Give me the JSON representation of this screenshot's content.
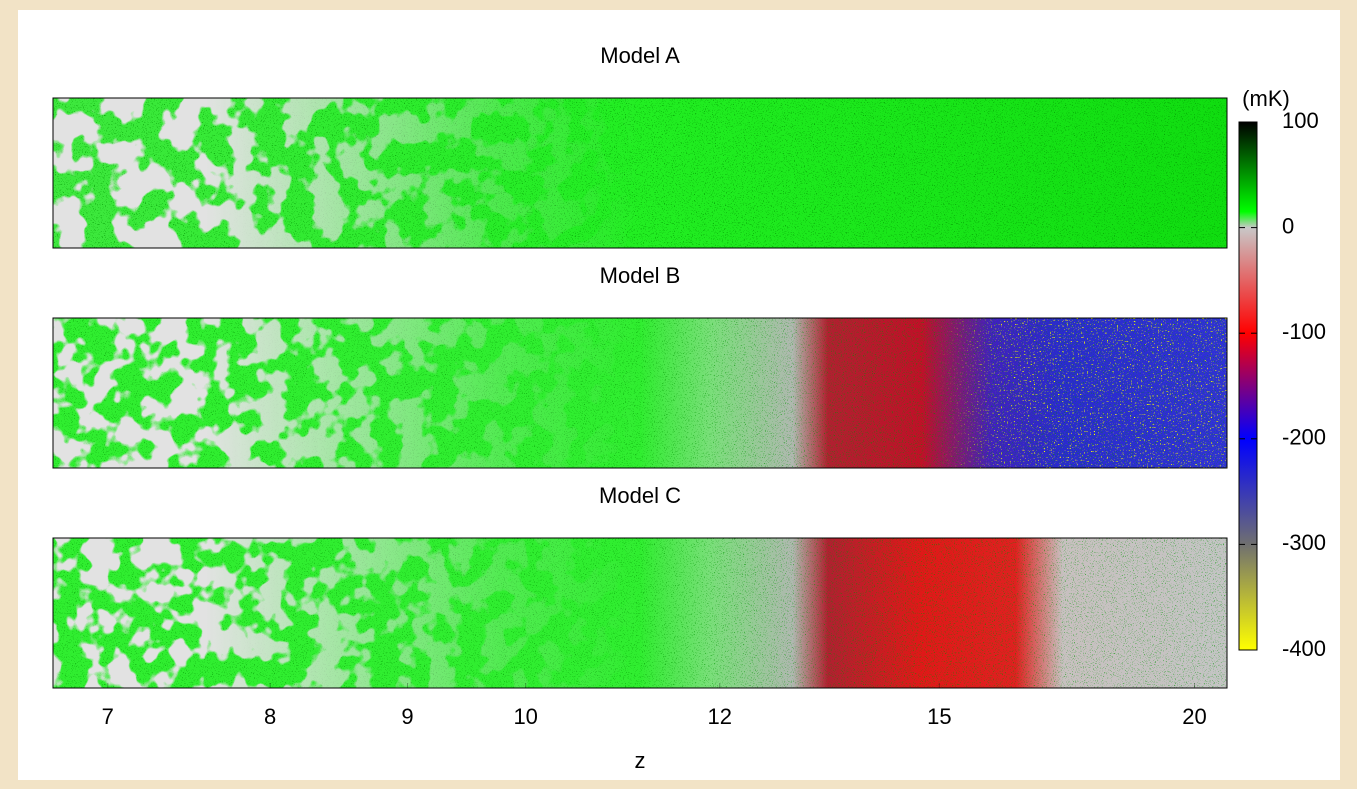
{
  "chart_data": {
    "type": "heatmap",
    "panels": [
      {
        "title": "Model A"
      },
      {
        "title": "Model B"
      },
      {
        "title": "Model C"
      }
    ],
    "xlabel": "z",
    "xlim": [
      6.7,
      20.8
    ],
    "xticks": [
      7,
      8,
      9,
      10,
      12,
      15,
      20
    ],
    "xscale": "comoving",
    "colorbar": {
      "label": "(mK)",
      "lim": [
        -400,
        100
      ],
      "ticks": [
        100,
        0,
        -100,
        -200,
        -300,
        -400
      ],
      "stops": [
        {
          "value": -400,
          "color": "#ffff00"
        },
        {
          "value": -300,
          "color": "#707070"
        },
        {
          "value": -200,
          "color": "#0000ff"
        },
        {
          "value": -100,
          "color": "#ff0000"
        },
        {
          "value": 0,
          "color": "#c8c8c8"
        },
        {
          "value": 15,
          "color": "#00ff00"
        },
        {
          "value": 100,
          "color": "#000000"
        }
      ]
    }
  }
}
